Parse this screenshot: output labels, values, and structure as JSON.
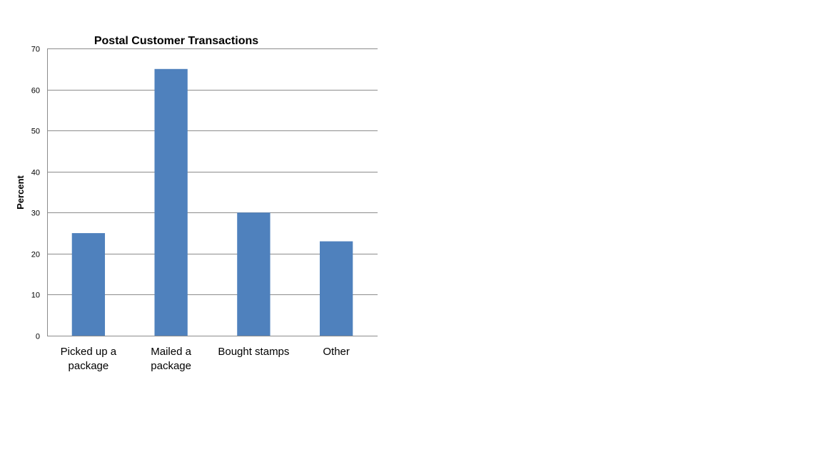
{
  "chart_data": {
    "type": "bar",
    "title": "Postal Customer Transactions",
    "xlabel": "",
    "ylabel": "Percent",
    "categories": [
      [
        "Picked up a",
        "package"
      ],
      [
        "Mailed a",
        "package"
      ],
      [
        "Bought stamps"
      ],
      [
        "Other"
      ]
    ],
    "values": [
      25,
      65,
      30,
      23
    ],
    "ylim": [
      0,
      70
    ],
    "yticks": [
      "0",
      "10",
      "20",
      "30",
      "40",
      "50",
      "60",
      "70"
    ],
    "grid": true,
    "legend": "none",
    "bar_color": "#4f81bd"
  }
}
